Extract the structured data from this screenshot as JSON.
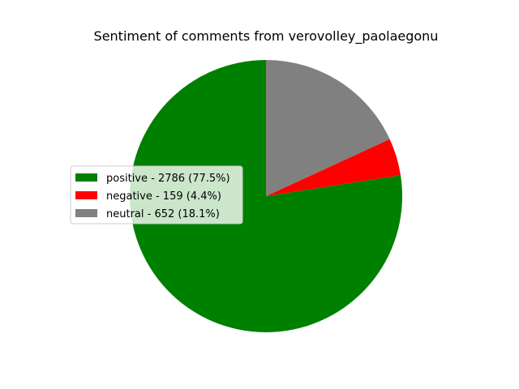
{
  "chart_data": {
    "type": "pie",
    "title": "Sentiment of comments from verovolley_paolaegonu",
    "start_angle_deg": 90,
    "direction": "counterclockwise",
    "legend_position": "center-left",
    "slices": [
      {
        "label": "positive",
        "value": 2786,
        "percent": "77.5%",
        "color": "#008000"
      },
      {
        "label": "negative",
        "value": 159,
        "percent": "4.4%",
        "color": "#ff0000"
      },
      {
        "label": "neutral",
        "value": 652,
        "percent": "18.1%",
        "color": "#808080"
      }
    ],
    "legend": [
      "positive - 2786 (77.5%)",
      "negative - 159 (4.4%)",
      "neutral - 652 (18.1%)"
    ]
  }
}
